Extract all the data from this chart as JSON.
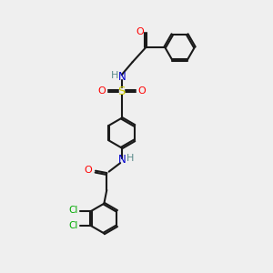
{
  "bg_color": "#efefef",
  "bond_color": "#1a1a1a",
  "O_color": "#ff0000",
  "N_color": "#0000cd",
  "S_color": "#cccc00",
  "Cl_color": "#00aa00",
  "H_color": "#5a8a8a",
  "lw": 1.5,
  "dbo": 0.06,
  "ring_r": 0.55,
  "xlim": [
    0,
    10
  ],
  "ylim": [
    0,
    10
  ]
}
